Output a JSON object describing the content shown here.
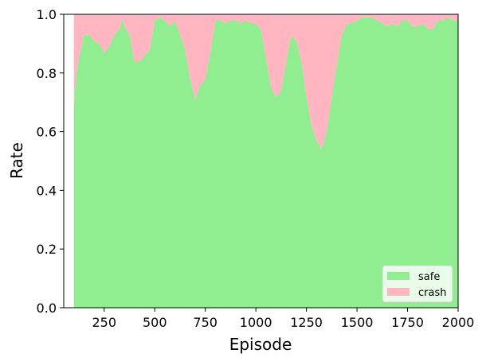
{
  "chart_data": {
    "type": "stackedarea",
    "xlabel": "Episode",
    "ylabel": "Rate",
    "x": [
      100,
      110,
      125,
      150,
      175,
      200,
      225,
      250,
      275,
      300,
      325,
      340,
      350,
      375,
      400,
      425,
      450,
      475,
      500,
      525,
      550,
      575,
      600,
      625,
      650,
      675,
      700,
      725,
      750,
      775,
      800,
      825,
      850,
      875,
      900,
      925,
      950,
      975,
      1000,
      1025,
      1050,
      1075,
      1100,
      1125,
      1150,
      1175,
      1200,
      1225,
      1250,
      1275,
      1300,
      1325,
      1350,
      1375,
      1400,
      1425,
      1450,
      1475,
      1500,
      1525,
      1550,
      1575,
      1600,
      1625,
      1650,
      1675,
      1700,
      1725,
      1750,
      1775,
      1800,
      1825,
      1850,
      1875,
      1900,
      1925,
      1950,
      1975,
      2000
    ],
    "series": [
      {
        "name": "safe",
        "color": "#90ee90",
        "values": [
          0.68,
          0.78,
          0.85,
          0.93,
          0.93,
          0.91,
          0.9,
          0.87,
          0.89,
          0.93,
          0.95,
          0.99,
          0.96,
          0.93,
          0.84,
          0.84,
          0.86,
          0.88,
          0.98,
          0.99,
          0.98,
          0.96,
          0.98,
          0.93,
          0.88,
          0.78,
          0.71,
          0.76,
          0.78,
          0.87,
          0.98,
          0.98,
          0.97,
          0.98,
          0.98,
          0.97,
          0.98,
          0.97,
          0.97,
          0.95,
          0.85,
          0.75,
          0.72,
          0.74,
          0.84,
          0.93,
          0.91,
          0.84,
          0.72,
          0.62,
          0.57,
          0.54,
          0.6,
          0.72,
          0.83,
          0.93,
          0.97,
          0.97,
          0.98,
          0.99,
          0.99,
          0.99,
          0.98,
          0.97,
          0.96,
          0.97,
          0.96,
          0.98,
          0.98,
          0.96,
          0.96,
          0.97,
          0.95,
          0.95,
          0.98,
          0.98,
          0.99,
          0.98,
          0.98
        ]
      },
      {
        "name": "crash",
        "color": "#ffb6c1",
        "values": [
          0.32,
          0.22,
          0.15,
          0.07,
          0.07,
          0.09,
          0.1,
          0.13,
          0.11,
          0.07,
          0.05,
          0.01,
          0.04,
          0.07,
          0.16,
          0.16,
          0.14,
          0.12,
          0.02,
          0.01,
          0.02,
          0.04,
          0.02,
          0.07,
          0.12,
          0.22,
          0.29,
          0.24,
          0.22,
          0.13,
          0.02,
          0.02,
          0.03,
          0.02,
          0.02,
          0.03,
          0.02,
          0.03,
          0.03,
          0.05,
          0.15,
          0.25,
          0.28,
          0.26,
          0.16,
          0.07,
          0.09,
          0.16,
          0.28,
          0.38,
          0.43,
          0.46,
          0.4,
          0.28,
          0.17,
          0.07,
          0.03,
          0.03,
          0.02,
          0.01,
          0.01,
          0.01,
          0.02,
          0.03,
          0.04,
          0.03,
          0.04,
          0.02,
          0.02,
          0.04,
          0.04,
          0.03,
          0.05,
          0.05,
          0.02,
          0.02,
          0.01,
          0.02,
          0.02
        ]
      }
    ],
    "xlim": [
      50,
      2000
    ],
    "xticks": [
      250,
      500,
      750,
      1000,
      1250,
      1500,
      1750,
      2000
    ],
    "ylim": [
      0,
      1
    ],
    "yticks": [
      {
        "value": 0,
        "label": "0.0"
      },
      0.2,
      0.4,
      0.6,
      0.8,
      {
        "value": 1,
        "label": "1.0"
      }
    ],
    "legend": "lower right"
  }
}
